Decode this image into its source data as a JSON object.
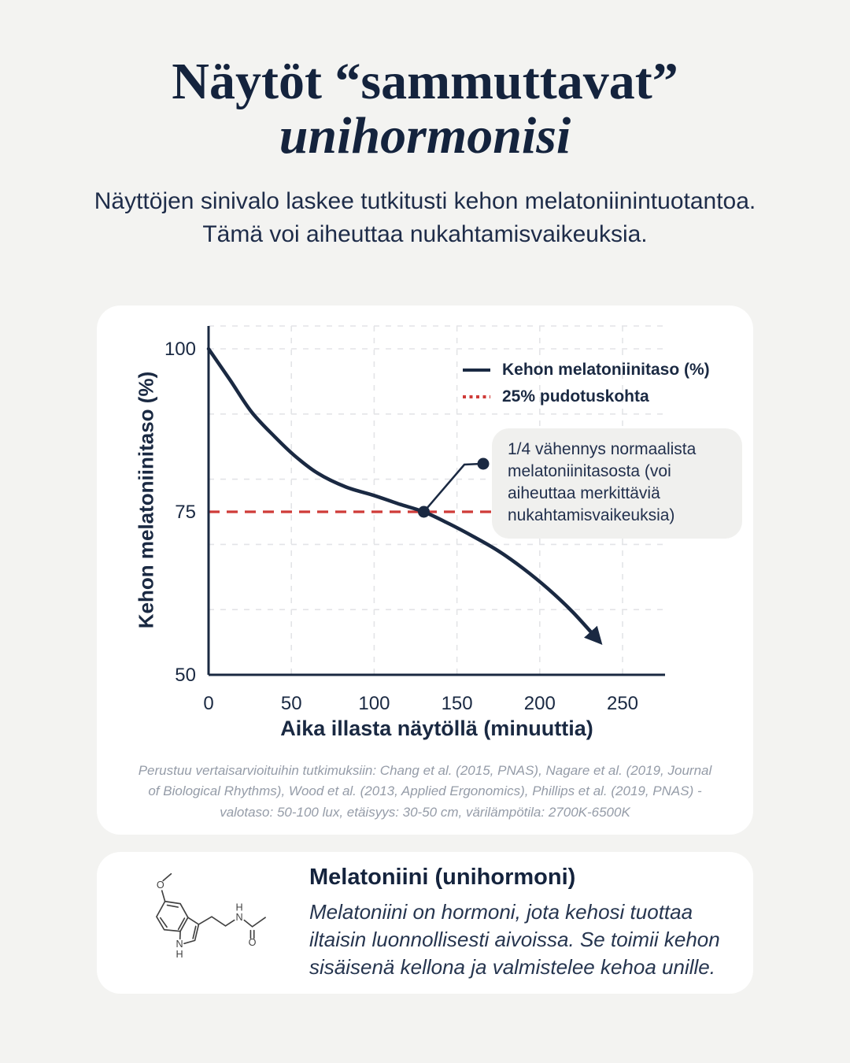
{
  "page": {
    "background": "#f3f3f1",
    "accent_navy": "#1a2942",
    "accent_red": "#cf3b38",
    "card_background": "#ffffff",
    "bubble_background": "#f0f0ee"
  },
  "header": {
    "title_line1": "Näytöt “sammuttavat”",
    "title_line2": "unihormonisi",
    "subtitle_line1": "Näyttöjen sinivalo laskee tutkitusti kehon melatoniinintuotantoa.",
    "subtitle_line2": "Tämä voi aiheuttaa nukahtamisvaikeuksia."
  },
  "chart_card": {
    "footnote_lines": [
      "Perustuu vertaisarvioituihin tutkimuksiin: Chang et al. (2015, PNAS), Nagare et al. (2019, Journal",
      "of Biological Rhythms), Wood et al. (2013, Applied Ergonomics), Phillips et al. (2019, PNAS) -",
      "valotaso: 50-100 lux, etäisyys: 30-50 cm, värilämpötila: 2700K-6500K"
    ]
  },
  "chart_data": {
    "type": "line",
    "xlabel": "Aika illasta näytöllä (minuuttia)",
    "ylabel": "Kehon melatoniinitaso (%)",
    "xlim": [
      0,
      278
    ],
    "ylim": [
      50,
      103.5
    ],
    "x_ticks": [
      0,
      50,
      100,
      150,
      200,
      250
    ],
    "y_ticks": [
      100,
      75,
      50
    ],
    "grid": true,
    "legend_position": "top-right",
    "legend": [
      "Kehon melatoniinitaso (%)",
      "25% pudotuskohta"
    ],
    "series": [
      {
        "name": "Kehon melatoniinitaso (%)",
        "type": "line",
        "style": "solid",
        "color": "#1a2942",
        "arrow_end": true,
        "x": [
          0,
          13,
          26,
          40,
          52,
          66,
          83,
          100,
          115,
          130,
          145,
          160,
          175,
          190,
          205,
          220,
          235
        ],
        "y": [
          100,
          95.2,
          90.3,
          86.5,
          83.6,
          80.9,
          78.8,
          77.5,
          76.2,
          75,
          73.2,
          71.2,
          69,
          66.3,
          63.2,
          59.6,
          55.4
        ]
      },
      {
        "name": "25% pudotuskohta",
        "type": "hline",
        "style": "dashed",
        "color": "#cf3b38",
        "y_const": 75
      }
    ],
    "annotation": {
      "text": "1/4 vähennys normaalista melatoniinitasosta (voi aiheuttaa merkittäviä nukahtamisvaikeuksia)",
      "point": {
        "x": 130,
        "y": 75
      }
    }
  },
  "info_card": {
    "heading": "Melatoniini (unihormoni)",
    "body": "Melatoniini on hormoni, jota kehosi tuottaa iltaisin luonnollisesti aivoissa. Se toimii kehon sisäisenä kellona ja valmistelee kehoa unille.",
    "molecule": {
      "methoxy_o": "O",
      "indole_n": "N",
      "indole_h": "H",
      "amide_h": "H",
      "amide_n": "N",
      "carbonyl_o": "O"
    }
  }
}
